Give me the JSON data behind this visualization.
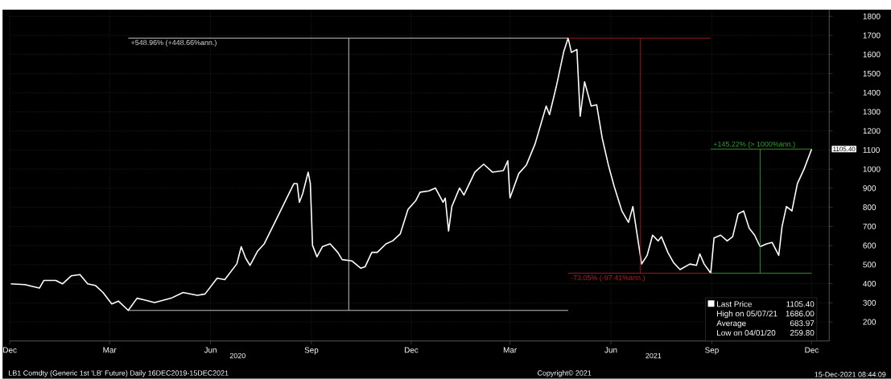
{
  "chart_data": {
    "type": "line",
    "xlim": [
      "2019-12-15",
      "2021-12-31"
    ],
    "ylim": [
      100,
      1835
    ],
    "xticks": [
      {
        "value": "2019-12-15",
        "label": "Dec"
      },
      {
        "value": "2020-03-15",
        "label": "Mar"
      },
      {
        "value": "2020-06-15",
        "label": "Jun"
      },
      {
        "value": "2020-09-15",
        "label": "Sep"
      },
      {
        "value": "2020-12-15",
        "label": "Dec"
      },
      {
        "value": "2021-03-15",
        "label": "Mar"
      },
      {
        "value": "2021-06-15",
        "label": "Jun"
      },
      {
        "value": "2021-09-15",
        "label": "Sep"
      },
      {
        "value": "2021-12-15",
        "label": "Dec"
      }
    ],
    "yticks": [
      200,
      300,
      400,
      500,
      600,
      700,
      800,
      900,
      1000,
      1100,
      1200,
      1300,
      1400,
      1500,
      1600,
      1700,
      1800
    ],
    "grid": true,
    "legend": "bottom right",
    "series": [
      {
        "name": "Last Price",
        "color": "#ffffff",
        "x": [
          "2019-12-16",
          "2019-12-29",
          "2020-01-11",
          "2020-01-15",
          "2020-01-26",
          "2020-02-01",
          "2020-02-09",
          "2020-02-17",
          "2020-02-24",
          "2020-03-02",
          "2020-03-09",
          "2020-03-17",
          "2020-03-23",
          "2020-04-01",
          "2020-04-09",
          "2020-04-15",
          "2020-04-25",
          "2020-05-10",
          "2020-05-21",
          "2020-06-03",
          "2020-06-10",
          "2020-06-21",
          "2020-06-28",
          "2020-07-09",
          "2020-07-13",
          "2020-07-17",
          "2020-07-21",
          "2020-07-28",
          "2020-08-03",
          "2020-08-12",
          "2020-08-21",
          "2020-08-30",
          "2020-09-02",
          "2020-09-04",
          "2020-09-07",
          "2020-09-12",
          "2020-09-14",
          "2020-09-16",
          "2020-09-20",
          "2020-09-25",
          "2020-10-02",
          "2020-10-09",
          "2020-10-13",
          "2020-10-22",
          "2020-10-30",
          "2020-11-03",
          "2020-11-09",
          "2020-11-14",
          "2020-11-22",
          "2020-11-28",
          "2020-12-05",
          "2020-12-12",
          "2020-12-19",
          "2020-12-23",
          "2020-12-31",
          "2021-01-06",
          "2021-01-13",
          "2021-01-15",
          "2021-01-18",
          "2021-01-21",
          "2021-01-28",
          "2021-02-01",
          "2021-02-11",
          "2021-02-19",
          "2021-02-27",
          "2021-03-09",
          "2021-03-13",
          "2021-03-15",
          "2021-03-23",
          "2021-03-30",
          "2021-04-07",
          "2021-04-17",
          "2021-04-20",
          "2021-04-26",
          "2021-05-03",
          "2021-05-07",
          "2021-05-10",
          "2021-05-15",
          "2021-05-18",
          "2021-05-22",
          "2021-05-28",
          "2021-06-02",
          "2021-06-07",
          "2021-06-13",
          "2021-06-18",
          "2021-06-25",
          "2021-07-01",
          "2021-07-05",
          "2021-07-13",
          "2021-07-18",
          "2021-07-23",
          "2021-07-28",
          "2021-07-31",
          "2021-08-06",
          "2021-08-11",
          "2021-08-17",
          "2021-08-26",
          "2021-09-01",
          "2021-09-04",
          "2021-09-08",
          "2021-09-14",
          "2021-09-17",
          "2021-09-23",
          "2021-09-29",
          "2021-10-04",
          "2021-10-09",
          "2021-10-14",
          "2021-10-19",
          "2021-10-24",
          "2021-10-29",
          "2021-11-04",
          "2021-11-09",
          "2021-11-15",
          "2021-11-18",
          "2021-11-22",
          "2021-11-27",
          "2021-12-02",
          "2021-12-08",
          "2021-12-15"
        ],
        "values": [
          399,
          395,
          377,
          417,
          417,
          399,
          441,
          448,
          399,
          391,
          354,
          294,
          309,
          260,
          324,
          316,
          301,
          324,
          354,
          339,
          346,
          429,
          421,
          504,
          594,
          534,
          496,
          571,
          609,
          714,
          819,
          924,
          924,
          826,
          871,
          984,
          924,
          601,
          541,
          594,
          609,
          564,
          526,
          519,
          481,
          489,
          564,
          564,
          609,
          624,
          661,
          789,
          834,
          879,
          886,
          901,
          826,
          848,
          676,
          804,
          901,
          864,
          984,
          1026,
          984,
          992,
          1044,
          849,
          977,
          1022,
          1134,
          1330,
          1285,
          1427,
          1615,
          1686,
          1611,
          1626,
          1277,
          1457,
          1330,
          1337,
          1164,
          1014,
          909,
          781,
          721,
          804,
          503,
          548,
          654,
          624,
          646,
          563,
          511,
          474,
          503,
          496,
          556,
          503,
          455,
          639,
          654,
          624,
          646,
          766,
          781,
          691,
          654,
          594,
          609,
          616,
          548,
          699,
          804,
          781,
          924,
          999,
          1105
        ]
      },
      {
        "color": "#d9d9d9",
        "x": [
          "2020-04-01",
          "2021-05-07"
        ],
        "values": [
          1686,
          1686
        ]
      },
      {
        "color": "#d9d9d9",
        "x": [
          "2020-04-01",
          "2021-05-07"
        ],
        "values": [
          260,
          260
        ]
      },
      {
        "color": "#d9d9d9",
        "x": [
          "2020-10-19",
          "2020-10-19"
        ],
        "values": [
          260,
          1686
        ]
      },
      {
        "color": "#b3191c",
        "x": [
          "2021-05-07",
          "2021-09-14"
        ],
        "values": [
          1686,
          1686
        ]
      },
      {
        "color": "#b3191c",
        "x": [
          "2021-05-07",
          "2021-09-14"
        ],
        "values": [
          455,
          455
        ]
      },
      {
        "color": "#b3191c",
        "x": [
          "2021-07-12",
          "2021-07-12"
        ],
        "values": [
          1686,
          455
        ]
      },
      {
        "color": "#2f9e2f",
        "x": [
          "2021-09-14",
          "2021-12-15"
        ],
        "values": [
          455,
          455
        ]
      },
      {
        "color": "#2f9e2f",
        "x": [
          "2021-09-14",
          "2021-12-15"
        ],
        "values": [
          1105,
          1105
        ]
      },
      {
        "color": "#2f9e2f",
        "x": [
          "2021-10-29",
          "2021-10-29"
        ],
        "values": [
          455,
          1105
        ]
      }
    ],
    "annotations": [
      {
        "text": "+548.96% (+448.66%ann.)",
        "x": "2020-04-01",
        "y": 1686
      },
      {
        "text": "-73.05% (-97.41%ann.)",
        "x": "2021-05-07",
        "y": 455
      },
      {
        "text": "+145.22% (> 1000%ann.)",
        "x": "2021-09-14",
        "y": 1105
      },
      "1105.40",
      "1105.40",
      "High on 05/07/21",
      "1686.00",
      "Average",
      "683.97",
      "Low on 04/01/20",
      "259.80",
      "2020",
      "2021",
      "LB1 Comdty (Generic 1st 'LB' Future)  Daily 16DEC2019-15DEC2021",
      "Copyright© 2021",
      "15-Dec-2021 08:44:09"
    ]
  }
}
